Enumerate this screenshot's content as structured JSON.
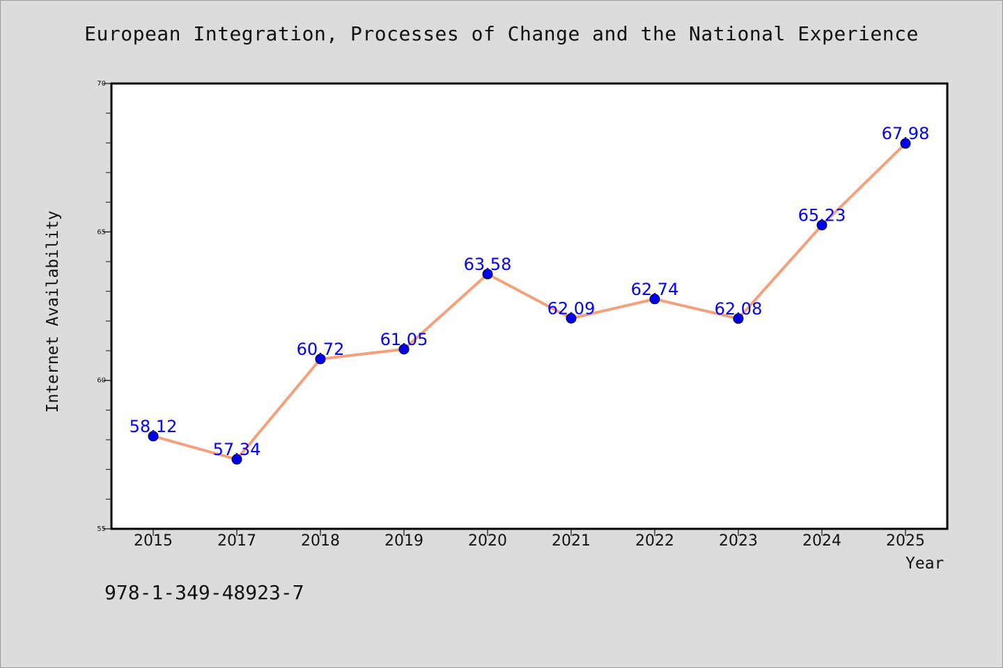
{
  "chart_data": {
    "type": "line",
    "title": "European Integration, Processes of Change and the National Experience",
    "xlabel": "Year",
    "ylabel": "Internet Availability",
    "categories": [
      "2015",
      "2017",
      "2018",
      "2019",
      "2020",
      "2021",
      "2022",
      "2023",
      "2024",
      "2025"
    ],
    "series": [
      {
        "values": [
          58.12,
          57.34,
          60.72,
          61.05,
          63.58,
          62.09,
          62.74,
          62.08,
          65.23,
          67.98
        ],
        "data_labels": [
          "58.12",
          "57.34",
          "60.72",
          "61.05",
          "63.58",
          "62.09",
          "62.74",
          "62.08",
          "65.23",
          "67.98"
        ],
        "line_color": "#f4a07a",
        "marker_color": "#0000ee"
      }
    ],
    "ylim": [
      55,
      70
    ],
    "yticks": [
      55,
      60,
      65,
      70
    ],
    "ytick_labels": [
      "55",
      "60",
      "65",
      "70"
    ],
    "grid": false,
    "legend": "none"
  },
  "footer": {
    "code": "978-1-349-48923-7"
  },
  "colors": {
    "background": "#dcdcdc",
    "plot_background": "#ffffff",
    "label_color": "#0000ff"
  }
}
